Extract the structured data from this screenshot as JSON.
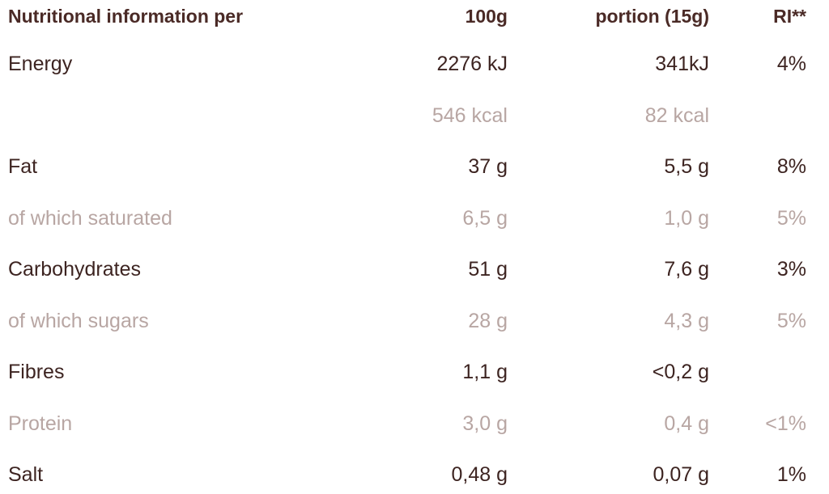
{
  "table": {
    "header": [
      "Nutritional information per",
      "100g",
      "portion (15g)",
      "RI**"
    ],
    "header_color": "#4a2a26",
    "rows": [
      {
        "cells": [
          "Energy",
          "2276 kJ",
          "341kJ",
          "4%"
        ],
        "color": "#3d2421"
      },
      {
        "cells": [
          null,
          "546 kcal",
          "82 kcal",
          null
        ],
        "color": "#b8a6a3"
      },
      {
        "cells": [
          "Fat",
          "37 g",
          "5,5 g",
          "8%"
        ],
        "color": "#3d2421"
      },
      {
        "cells": [
          "of which saturated",
          "6,5 g",
          "1,0 g",
          "5%"
        ],
        "color": "#b8a6a3"
      },
      {
        "cells": [
          "Carbohydrates",
          "51 g",
          "7,6 g",
          "3%"
        ],
        "color": "#3d2421"
      },
      {
        "cells": [
          "of which sugars",
          "28 g",
          "4,3 g",
          "5%"
        ],
        "color": "#b8a6a3"
      },
      {
        "cells": [
          "Fibres",
          "1,1 g",
          "<0,2 g",
          null
        ],
        "color": "#3d2421"
      },
      {
        "cells": [
          "Protein",
          "3,0 g",
          "0,4 g",
          "<1%"
        ],
        "color": "#b8a6a3"
      },
      {
        "cells": [
          "Salt",
          "0,48 g",
          "0,07 g",
          "1%"
        ],
        "color": "#3d2421"
      }
    ]
  }
}
